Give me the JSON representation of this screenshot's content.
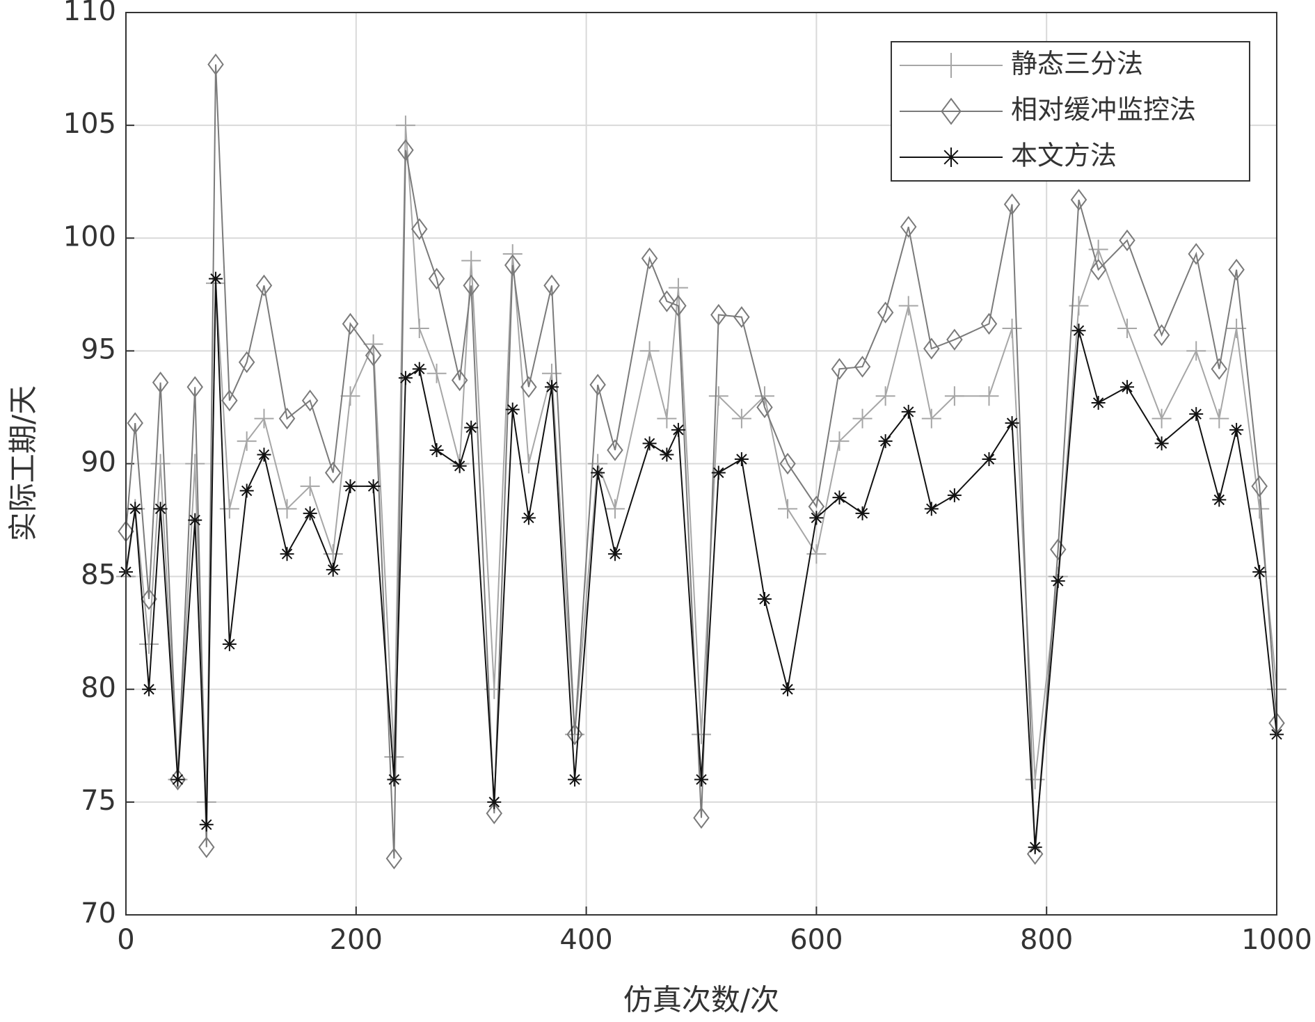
{
  "chart_data": {
    "type": "line",
    "x_label": "仿真次数/次",
    "y_label": "实际工期/天",
    "xlim": [
      0,
      1000
    ],
    "xticks": [
      0,
      200,
      400,
      600,
      800,
      1000
    ],
    "ylim": [
      70,
      110
    ],
    "yticks": [
      70,
      75,
      80,
      85,
      90,
      95,
      100,
      105,
      110
    ],
    "grid": true,
    "legend": "upper right",
    "x": [
      0,
      8,
      20,
      30,
      45,
      60,
      70,
      78,
      90,
      105,
      120,
      140,
      160,
      180,
      195,
      215,
      233,
      243,
      255,
      270,
      290,
      300,
      320,
      336,
      350,
      370,
      390,
      410,
      425,
      455,
      470,
      480,
      500,
      515,
      535,
      555,
      575,
      600,
      620,
      640,
      660,
      680,
      700,
      720,
      750,
      770,
      790,
      810,
      828,
      845,
      870,
      900,
      930,
      950,
      965,
      985,
      1000
    ],
    "series": [
      {
        "name": "静态三分法",
        "color": "#a6a6a6",
        "marker": "plus",
        "values": [
          85,
          88,
          82,
          90,
          76,
          90,
          75,
          98,
          88,
          91,
          92,
          88,
          89,
          86,
          93,
          95.3,
          77,
          105,
          96,
          94,
          90,
          99,
          80,
          99.3,
          90,
          94,
          78,
          90,
          88,
          95,
          92,
          97.8,
          78,
          93,
          92,
          93,
          88,
          86,
          91,
          92,
          93,
          97,
          92,
          93,
          93,
          96,
          76,
          85,
          97,
          99.5,
          96,
          92,
          95,
          92,
          96,
          88,
          80
        ]
      },
      {
        "name": "相对缓冲监控法",
        "color": "#7a7a7a",
        "marker": "diamond",
        "values": [
          87,
          91.8,
          84,
          93.6,
          76,
          93.4,
          73,
          107.7,
          92.8,
          94.5,
          97.9,
          92,
          92.8,
          89.6,
          96.2,
          94.8,
          72.5,
          103.9,
          100.4,
          98.2,
          93.7,
          97.9,
          74.5,
          98.8,
          93.4,
          97.9,
          78,
          93.5,
          90.6,
          99.1,
          97.2,
          97,
          74.3,
          96.6,
          96.5,
          92.5,
          90,
          88.1,
          94.2,
          94.3,
          96.7,
          100.5,
          95.1,
          95.5,
          96.2,
          101.5,
          72.7,
          86.2,
          101.7,
          98.6,
          99.9,
          95.7,
          99.3,
          94.2,
          98.6,
          89,
          78.5
        ]
      },
      {
        "name": "本文方法",
        "color": "#111111",
        "marker": "star",
        "values": [
          85.2,
          88,
          80,
          88,
          76,
          87.5,
          74,
          98.2,
          82,
          88.8,
          90.4,
          86,
          87.8,
          85.3,
          89,
          89,
          76,
          93.8,
          94.2,
          90.6,
          89.9,
          91.6,
          75,
          92.4,
          87.6,
          93.4,
          76,
          89.6,
          86,
          90.9,
          90.4,
          91.5,
          76,
          89.6,
          90.2,
          84,
          80,
          87.6,
          88.5,
          87.8,
          91,
          92.3,
          88,
          88.6,
          90.2,
          91.8,
          73,
          84.8,
          95.9,
          92.7,
          93.4,
          90.9,
          92.2,
          88.4,
          91.5,
          85.2,
          78
        ]
      }
    ]
  }
}
